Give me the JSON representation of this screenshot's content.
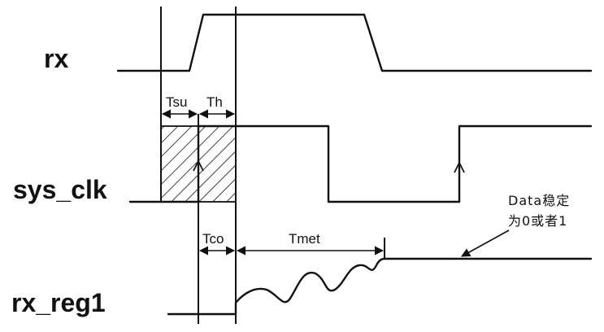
{
  "signals": {
    "rx": "rx",
    "sys_clk": "sys_clk",
    "rx_reg1": "rx_reg1"
  },
  "timing": {
    "tsu": "Tsu",
    "th": "Th",
    "tco": "Tco",
    "tmet": "Tmet"
  },
  "note": {
    "line1": "Data稳定",
    "line2": "为0或者1"
  }
}
